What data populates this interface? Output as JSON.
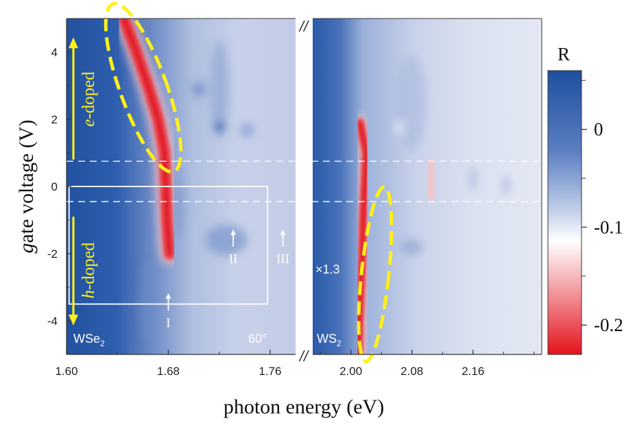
{
  "chart_data": {
    "type": "heatmap",
    "ylabel_prefix": "g",
    "ylabel_rest": "ate voltage (V)",
    "xlabel": "photon energy (eV)",
    "y_range": [
      -5,
      5
    ],
    "y_ticks": [
      {
        "value": 4,
        "label": "4"
      },
      {
        "value": 2,
        "label": "2"
      },
      {
        "value": 0,
        "label": "0"
      },
      {
        "value": -2,
        "label": "-2"
      },
      {
        "value": -4,
        "label": "-4"
      }
    ],
    "panels": [
      {
        "name": "WSe2",
        "label_main": "WSe",
        "label_sub": "2",
        "angle_label": "60°",
        "x_range": [
          1.6,
          1.78
        ],
        "x_ticks": [
          {
            "value": 1.6,
            "label": "1.60"
          },
          {
            "value": 1.68,
            "label": "1.68"
          },
          {
            "value": 1.76,
            "label": "1.76"
          }
        ],
        "exciton_ridge": [
          [
            5,
            1.645
          ],
          [
            4,
            1.655
          ],
          [
            3,
            1.664
          ],
          [
            2,
            1.672
          ],
          [
            1,
            1.677
          ],
          [
            0,
            1.678
          ],
          [
            -1,
            1.679
          ],
          [
            -2,
            1.681
          ]
        ],
        "peaks": [
          {
            "label": "I",
            "energy": 1.68,
            "gate_voltage": -3.2
          },
          {
            "label": "II",
            "energy": 1.731,
            "gate_voltage": -1.3
          },
          {
            "label": "III",
            "energy": 1.77,
            "gate_voltage": -1.3
          }
        ],
        "box": {
          "x_range": [
            1.602,
            1.758
          ],
          "y_range": [
            -3.5,
            0
          ]
        }
      },
      {
        "name": "WS2",
        "label_main": "WS",
        "label_sub": "2",
        "scale_label": "×1.3",
        "x_range": [
          1.95,
          2.25
        ],
        "x_ticks": [
          {
            "value": 2.0,
            "label": "2.00"
          },
          {
            "value": 2.08,
            "label": "2.08"
          },
          {
            "value": 2.16,
            "label": "2.16"
          }
        ],
        "exciton_ridge": [
          [
            1.9,
            2.012
          ],
          [
            1,
            2.02
          ],
          [
            0,
            2.018
          ],
          [
            -1,
            2.016
          ],
          [
            -2,
            2.015
          ],
          [
            -3,
            2.013
          ],
          [
            -4,
            2.011
          ],
          [
            -5,
            2.01
          ]
        ],
        "weak_feature": {
          "energy": 2.105,
          "gate_voltage_range": [
            -0.4,
            0.8
          ]
        }
      }
    ],
    "dashed_lines_gate_voltage": [
      0.75,
      -0.45
    ],
    "doping_labels": [
      {
        "prefix": "e",
        "rest": "-doped",
        "gate_voltage_range": [
          0.8,
          4.4
        ]
      },
      {
        "prefix": "h",
        "rest": "-doped",
        "gate_voltage_range": [
          -4.1,
          -0.9
        ]
      }
    ],
    "colorbar": {
      "title": "R",
      "range": [
        -0.23,
        0.06
      ],
      "ticks": [
        {
          "value": 0,
          "label": "0"
        },
        {
          "value": -0.1,
          "label": "-0.1"
        },
        {
          "value": -0.2,
          "label": "-0.2"
        }
      ],
      "colors": {
        "high": "#1e4f9e",
        "mid": "#ffffff",
        "low": "#e5121c"
      }
    },
    "colors": {
      "highlight": "#ffef1a",
      "background_blue": "#3d6ab8"
    }
  }
}
